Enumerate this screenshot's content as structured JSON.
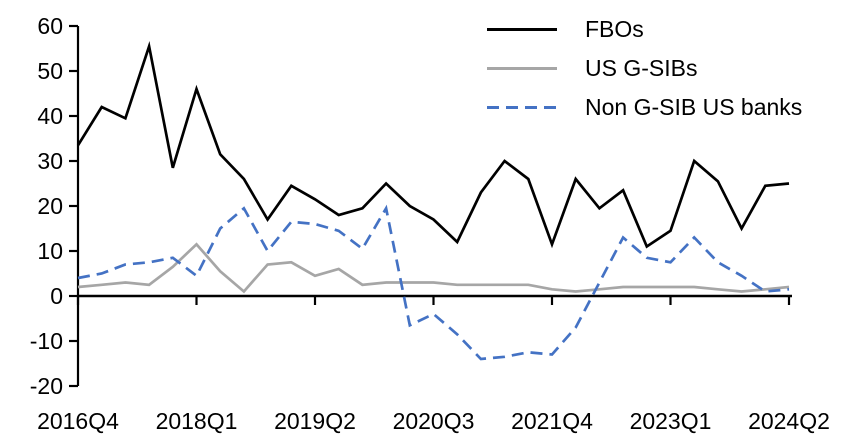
{
  "chart_data": {
    "type": "line",
    "title": "",
    "xlabel": "",
    "ylabel": "",
    "grid": false,
    "legend_position": "top-right",
    "ylim": [
      -20,
      60
    ],
    "y_tick_step": 10,
    "y_tick_labels": [
      "-20",
      "-10",
      "0",
      "10",
      "20",
      "30",
      "40",
      "50",
      "60"
    ],
    "x_tick_labels": [
      "2016Q4",
      "2018Q1",
      "2019Q2",
      "2020Q3",
      "2021Q4",
      "2023Q1",
      "2024Q2"
    ],
    "x_tick_every": 5,
    "x_categories": [
      "2016Q4",
      "2017Q1",
      "2017Q2",
      "2017Q3",
      "2017Q4",
      "2018Q1",
      "2018Q2",
      "2018Q3",
      "2018Q4",
      "2019Q1",
      "2019Q2",
      "2019Q3",
      "2019Q4",
      "2020Q1",
      "2020Q2",
      "2020Q3",
      "2020Q4",
      "2021Q1",
      "2021Q2",
      "2021Q3",
      "2021Q4",
      "2022Q1",
      "2022Q2",
      "2022Q3",
      "2022Q4",
      "2023Q1",
      "2023Q2",
      "2023Q3",
      "2023Q4",
      "2024Q1",
      "2024Q2"
    ],
    "series": [
      {
        "name": "FBOs",
        "color": "#000000",
        "dash": "solid",
        "values": [
          33.5,
          42,
          39.5,
          55.5,
          28.5,
          46,
          31.5,
          26,
          17,
          24.5,
          21.5,
          18,
          19.5,
          25,
          20,
          17,
          12,
          23,
          30,
          26,
          11.5,
          26,
          19.5,
          23.5,
          11,
          14.5,
          30,
          25.5,
          15,
          24.5,
          25
        ]
      },
      {
        "name": "US G-SIBs",
        "color": "#a6a6a6",
        "dash": "solid",
        "values": [
          2,
          2.5,
          3,
          2.5,
          6.5,
          11.5,
          5.5,
          1,
          7,
          7.5,
          4.5,
          6,
          2.5,
          3,
          3,
          3,
          2.5,
          2.5,
          2.5,
          2.5,
          1.5,
          1,
          1.5,
          2,
          2,
          2,
          2,
          1.5,
          1,
          1.5,
          2
        ]
      },
      {
        "name": "Non G-SIB US banks",
        "color": "#4472c4",
        "dash": "dashed",
        "values": [
          4,
          5,
          7,
          7.5,
          8.5,
          4.5,
          15,
          19.5,
          10,
          16.5,
          16,
          14.5,
          10.5,
          19.5,
          -6.5,
          -4,
          -8.5,
          -14,
          -13.5,
          -12.5,
          -13,
          -7,
          3,
          13,
          8.5,
          7.5,
          13,
          7.5,
          4.5,
          1,
          1.5
        ]
      }
    ]
  }
}
